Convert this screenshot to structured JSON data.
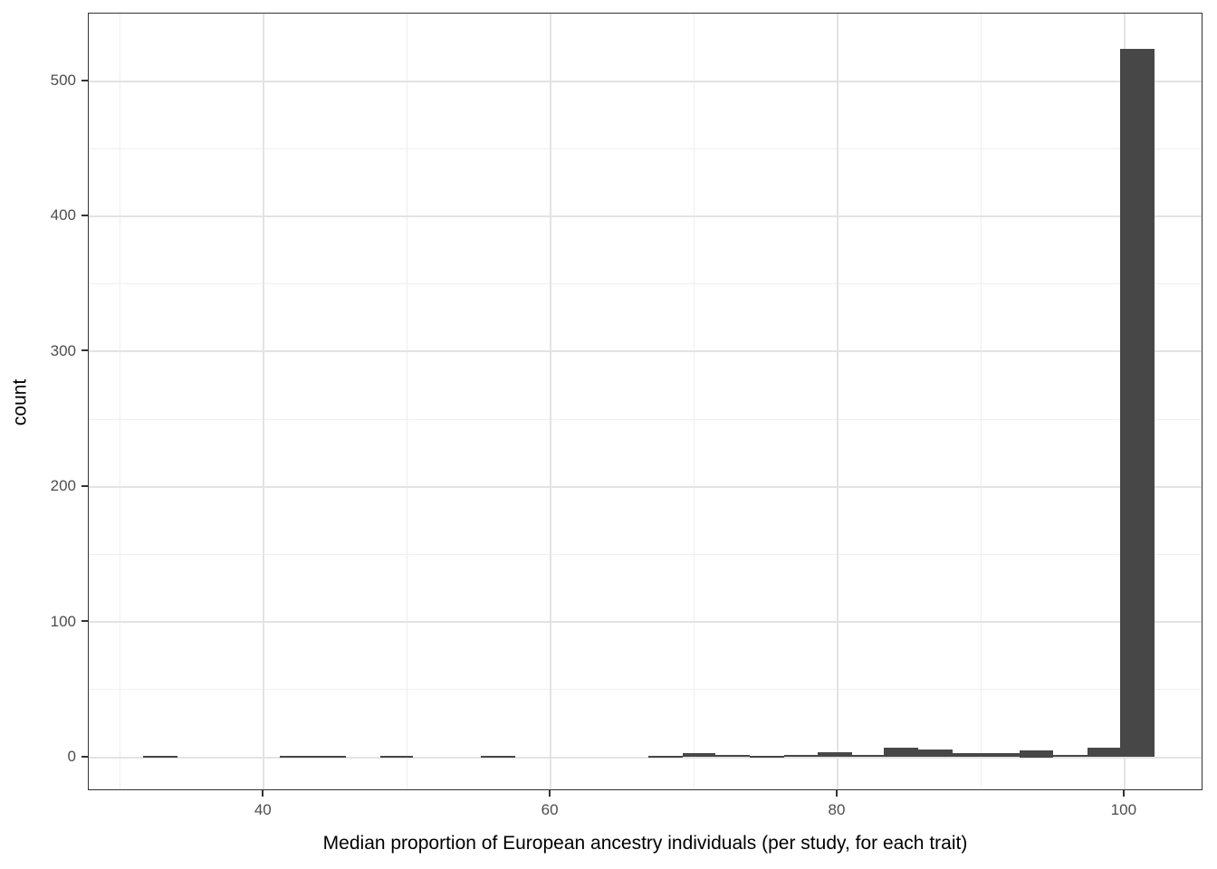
{
  "chart_data": {
    "type": "bar",
    "subtype": "histogram",
    "title": "",
    "xlabel": "Median proportion of European ancestry individuals (per study, for each trait)",
    "ylabel": "count",
    "x_range": [
      27.8,
      105.5
    ],
    "y_range": [
      -25.1,
      549.9
    ],
    "x_major_ticks": [
      40,
      60,
      80,
      100
    ],
    "x_minor_gridlines": [
      30,
      50,
      70,
      90
    ],
    "y_major_ticks": [
      0,
      100,
      200,
      300,
      400,
      500
    ],
    "y_minor_gridlines": [
      50,
      150,
      250,
      350,
      450
    ],
    "grid": "on",
    "legend": "none",
    "bar_color": "#474747",
    "bins": [
      {
        "x0": 31.6,
        "x1": 34.0,
        "count": 1
      },
      {
        "x0": 41.1,
        "x1": 43.4,
        "count": 1
      },
      {
        "x0": 43.4,
        "x1": 45.7,
        "count": 1
      },
      {
        "x0": 48.1,
        "x1": 50.4,
        "count": 1
      },
      {
        "x0": 55.1,
        "x1": 57.5,
        "count": 1
      },
      {
        "x0": 66.8,
        "x1": 69.2,
        "count": 1
      },
      {
        "x0": 69.2,
        "x1": 71.5,
        "count": 3
      },
      {
        "x0": 71.5,
        "x1": 73.9,
        "count": 2
      },
      {
        "x0": 73.9,
        "x1": 76.3,
        "count": 1
      },
      {
        "x0": 76.3,
        "x1": 78.6,
        "count": 2
      },
      {
        "x0": 78.6,
        "x1": 81.0,
        "count": 4
      },
      {
        "x0": 81.0,
        "x1": 83.2,
        "count": 2
      },
      {
        "x0": 83.2,
        "x1": 85.6,
        "count": 7
      },
      {
        "x0": 85.6,
        "x1": 88.0,
        "count": 6
      },
      {
        "x0": 88.0,
        "x1": 90.3,
        "count": 3
      },
      {
        "x0": 90.3,
        "x1": 92.7,
        "count": 3
      },
      {
        "x0": 92.7,
        "x1": 95.0,
        "count": 5
      },
      {
        "x0": 95.0,
        "x1": 97.4,
        "count": 2
      },
      {
        "x0": 97.4,
        "x1": 99.7,
        "count": 7
      },
      {
        "x0": 99.7,
        "x1": 102.1,
        "count": 524
      }
    ],
    "colors": {
      "panel_background": "#ffffff",
      "panel_border": "#333333",
      "grid_major": "#e3e3e3",
      "grid_minor": "#efefef",
      "tick_mark": "#333333",
      "tick_label": "#4d4d4d",
      "axis_title": "#000000"
    }
  }
}
